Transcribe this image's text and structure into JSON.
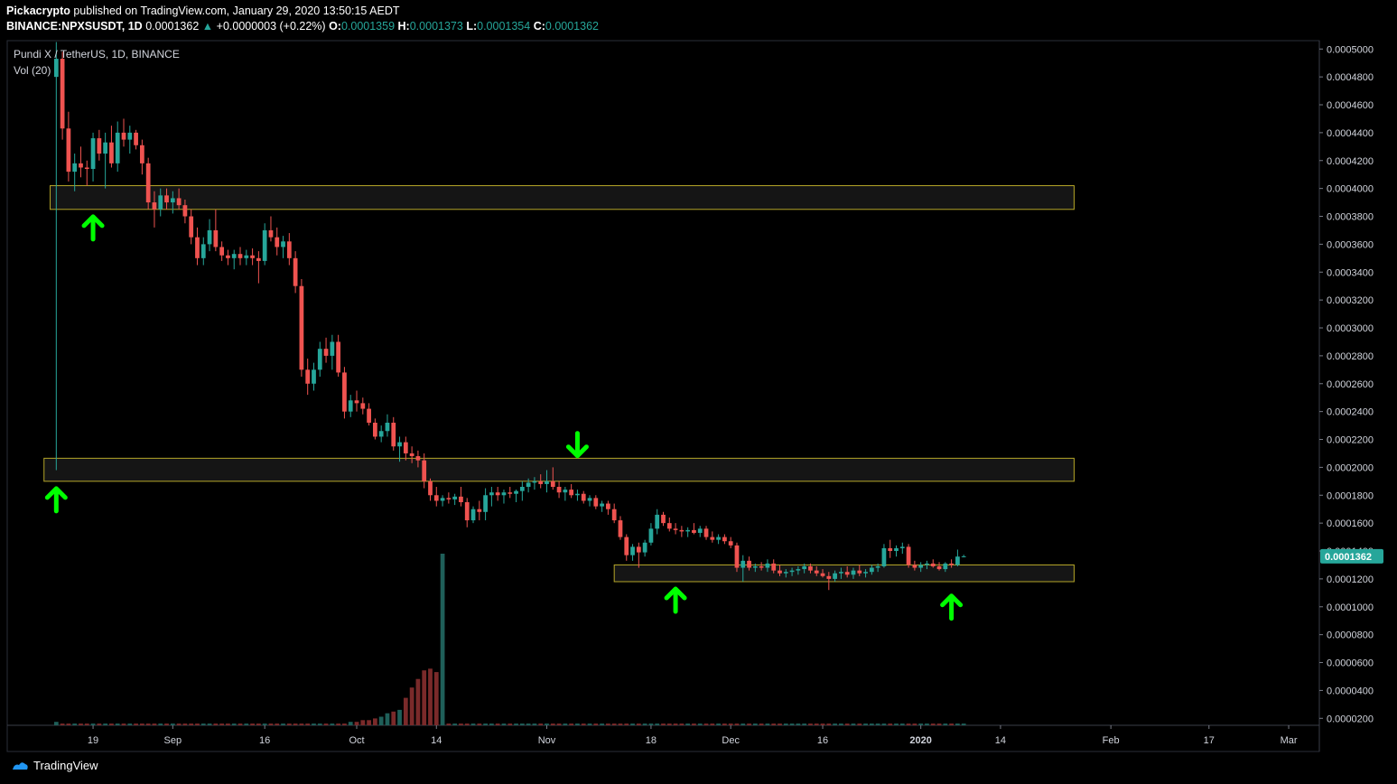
{
  "header": {
    "publisher": "Pickacrypto",
    "published_text": "published on TradingView.com, January 29, 2020 13:50:15 AEDT",
    "symbol_line": "BINANCE:NPXSUSDT, 1D",
    "last_price": "0.0001362",
    "change_arrow": "▲",
    "change": "+0.0000003 (+0.22%)",
    "o_label": "O:",
    "o_value": "0.0001359",
    "h_label": "H:",
    "h_value": "0.0001373",
    "l_label": "L:",
    "l_value": "0.0001354",
    "c_label": "C:",
    "c_value": "0.0001362"
  },
  "footer": {
    "brand": "TradingView",
    "logo_icon": "tradingview-logo-icon"
  },
  "colors": {
    "background": "#000000",
    "up": "#26a69a",
    "down": "#ef5350",
    "vol_up": "#1f5f59",
    "vol_down": "#7a2a2a",
    "zone_stroke": "#b5a628",
    "arrow": "#00ff00",
    "price_tag": "#26a69a"
  },
  "chart_data": {
    "type": "candlestick",
    "title": "Pundi X / TetherUS, 1D, BINANCE",
    "indicator_label": "Vol (20)",
    "current_price_label": "0.0001362",
    "y_axis": {
      "range": [
        1.5e-05,
        0.000506
      ],
      "ticks": [
        "0.0005000",
        "0.0004800",
        "0.0004600",
        "0.0004400",
        "0.0004200",
        "0.0004000",
        "0.0003800",
        "0.0003600",
        "0.0003400",
        "0.0003200",
        "0.0003000",
        "0.0002800",
        "0.0002600",
        "0.0002400",
        "0.0002200",
        "0.0002000",
        "0.0001800",
        "0.0001600",
        "0.0001400",
        "0.0001200",
        "0.0001000",
        "0.0000800",
        "0.0000600",
        "0.0000400",
        "0.0000200"
      ]
    },
    "x_axis": {
      "range": [
        "2019-08-05",
        "2020-03-06"
      ],
      "ticks": [
        {
          "date": "2019-08-19",
          "label": "19"
        },
        {
          "date": "2019-09-01",
          "label": "Sep"
        },
        {
          "date": "2019-09-16",
          "label": "16"
        },
        {
          "date": "2019-10-01",
          "label": "Oct"
        },
        {
          "date": "2019-10-14",
          "label": "14"
        },
        {
          "date": "2019-11-01",
          "label": "Nov"
        },
        {
          "date": "2019-11-18",
          "label": "18"
        },
        {
          "date": "2019-12-01",
          "label": "Dec"
        },
        {
          "date": "2019-12-16",
          "label": "16"
        },
        {
          "date": "2020-01-01",
          "label": "2020"
        },
        {
          "date": "2020-01-14",
          "label": "14"
        },
        {
          "date": "2020-02-01",
          "label": "Feb"
        },
        {
          "date": "2020-02-17",
          "label": "17"
        },
        {
          "date": "2020-03-01",
          "label": "Mar"
        }
      ]
    },
    "start_date": "2019-08-13",
    "candles": [
      [
        0.00048,
        0.000505,
        0.000198,
        0.000493
      ],
      [
        0.000493,
        0.000498,
        0.000435,
        0.000443
      ],
      [
        0.000443,
        0.000455,
        0.000405,
        0.000412
      ],
      [
        0.000412,
        0.000425,
        0.000398,
        0.000418
      ],
      [
        0.000418,
        0.00043,
        0.000408,
        0.000415
      ],
      [
        0.000415,
        0.00042,
        0.000402,
        0.000414
      ],
      [
        0.000414,
        0.00044,
        0.000405,
        0.000436
      ],
      [
        0.000436,
        0.000442,
        0.00042,
        0.000425
      ],
      [
        0.000425,
        0.00044,
        0.0004,
        0.000433
      ],
      [
        0.000433,
        0.000445,
        0.000415,
        0.000418
      ],
      [
        0.000418,
        0.000448,
        0.000412,
        0.00044
      ],
      [
        0.00044,
        0.00045,
        0.00043,
        0.000435
      ],
      [
        0.000435,
        0.000445,
        0.000425,
        0.00044
      ],
      [
        0.00044,
        0.000442,
        0.000428,
        0.000431
      ],
      [
        0.000431,
        0.000435,
        0.00041,
        0.000418
      ],
      [
        0.000418,
        0.000422,
        0.000385,
        0.00039
      ],
      [
        0.00039,
        0.000398,
        0.000372,
        0.000385
      ],
      [
        0.000385,
        0.0004,
        0.00038,
        0.000395
      ],
      [
        0.000395,
        0.0004,
        0.000385,
        0.00039
      ],
      [
        0.00039,
        0.000398,
        0.000382,
        0.000393
      ],
      [
        0.000393,
        0.0004,
        0.000385,
        0.000388
      ],
      [
        0.000388,
        0.000392,
        0.000375,
        0.00038
      ],
      [
        0.00038,
        0.000385,
        0.00036,
        0.000365
      ],
      [
        0.000365,
        0.000372,
        0.000345,
        0.00035
      ],
      [
        0.00035,
        0.000365,
        0.000345,
        0.00036
      ],
      [
        0.00036,
        0.000378,
        0.000355,
        0.00037
      ],
      [
        0.00037,
        0.000385,
        0.000355,
        0.000358
      ],
      [
        0.000358,
        0.000362,
        0.000348,
        0.000352
      ],
      [
        0.000352,
        0.000356,
        0.000345,
        0.00035
      ],
      [
        0.00035,
        0.000356,
        0.000342,
        0.000353
      ],
      [
        0.000353,
        0.000358,
        0.000345,
        0.00035
      ],
      [
        0.00035,
        0.000356,
        0.000345,
        0.000352
      ],
      [
        0.000352,
        0.000357,
        0.000345,
        0.00035
      ],
      [
        0.00035,
        0.000355,
        0.000332,
        0.000348
      ],
      [
        0.000348,
        0.000375,
        0.000345,
        0.00037
      ],
      [
        0.00037,
        0.00038,
        0.000362,
        0.000365
      ],
      [
        0.000365,
        0.000372,
        0.000352,
        0.000358
      ],
      [
        0.000358,
        0.000366,
        0.00035,
        0.000362
      ],
      [
        0.000362,
        0.000368,
        0.000345,
        0.00035
      ],
      [
        0.00035,
        0.000355,
        0.000325,
        0.00033
      ],
      [
        0.00033,
        0.000335,
        0.000265,
        0.00027
      ],
      [
        0.00027,
        0.000278,
        0.000252,
        0.00026
      ],
      [
        0.00026,
        0.000275,
        0.000255,
        0.00027
      ],
      [
        0.00027,
        0.00029,
        0.000265,
        0.000285
      ],
      [
        0.000285,
        0.000293,
        0.000275,
        0.00028
      ],
      [
        0.00028,
        0.000295,
        0.00027,
        0.00029
      ],
      [
        0.00029,
        0.000295,
        0.000265,
        0.000268
      ],
      [
        0.000268,
        0.000272,
        0.000235,
        0.00024
      ],
      [
        0.00024,
        0.000252,
        0.000236,
        0.000248
      ],
      [
        0.000248,
        0.000255,
        0.00024,
        0.000246
      ],
      [
        0.000246,
        0.00025,
        0.000238,
        0.000242
      ],
      [
        0.000242,
        0.000246,
        0.00023,
        0.000232
      ],
      [
        0.000232,
        0.000235,
        0.00022,
        0.000222
      ],
      [
        0.000222,
        0.00023,
        0.000218,
        0.000226
      ],
      [
        0.000226,
        0.000238,
        0.000222,
        0.000232
      ],
      [
        0.000232,
        0.000236,
        0.000212,
        0.000215
      ],
      [
        0.000215,
        0.000222,
        0.000204,
        0.000218
      ],
      [
        0.000218,
        0.000222,
        0.000205,
        0.00021
      ],
      [
        0.00021,
        0.000215,
        0.000203,
        0.000208
      ],
      [
        0.000208,
        0.000212,
        0.0002,
        0.000205
      ],
      [
        0.000205,
        0.00021,
        0.000185,
        0.00019
      ],
      [
        0.00019,
        0.000192,
        0.000176,
        0.00018
      ],
      [
        0.00018,
        0.000186,
        0.000172,
        0.000176
      ],
      [
        0.000176,
        0.00018,
        0.000172,
        0.000178
      ],
      [
        0.000178,
        0.000182,
        0.000174,
        0.000177
      ],
      [
        0.000177,
        0.000181,
        0.000173,
        0.000179
      ],
      [
        0.000179,
        0.000186,
        0.000172,
        0.000175
      ],
      [
        0.000175,
        0.000178,
        0.000157,
        0.000162
      ],
      [
        0.000162,
        0.000172,
        0.00016,
        0.00017
      ],
      [
        0.00017,
        0.000176,
        0.000162,
        0.000168
      ],
      [
        0.000168,
        0.000185,
        0.000162,
        0.00018
      ],
      [
        0.00018,
        0.000186,
        0.000172,
        0.000182
      ],
      [
        0.000182,
        0.000186,
        0.000176,
        0.00018
      ],
      [
        0.00018,
        0.000184,
        0.000174,
        0.000182
      ],
      [
        0.000182,
        0.000186,
        0.000178,
        0.000181
      ],
      [
        0.000181,
        0.000184,
        0.000175,
        0.000183
      ],
      [
        0.000183,
        0.00019,
        0.000176,
        0.000186
      ],
      [
        0.000186,
        0.000192,
        0.000182,
        0.000189
      ],
      [
        0.000189,
        0.000193,
        0.000184,
        0.00019
      ],
      [
        0.00019,
        0.000195,
        0.000185,
        0.000188
      ],
      [
        0.000188,
        0.000198,
        0.000182,
        0.00019
      ],
      [
        0.00019,
        0.0002,
        0.000184,
        0.000186
      ],
      [
        0.000186,
        0.00019,
        0.000178,
        0.000182
      ],
      [
        0.000182,
        0.000186,
        0.000176,
        0.000184
      ],
      [
        0.000184,
        0.000188,
        0.000178,
        0.00018
      ],
      [
        0.00018,
        0.000184,
        0.000176,
        0.000181
      ],
      [
        0.000181,
        0.000183,
        0.000174,
        0.000176
      ],
      [
        0.000176,
        0.00018,
        0.000172,
        0.000178
      ],
      [
        0.000178,
        0.00018,
        0.00017,
        0.000172
      ],
      [
        0.000172,
        0.000176,
        0.000168,
        0.000174
      ],
      [
        0.000174,
        0.000176,
        0.000166,
        0.00017
      ],
      [
        0.00017,
        0.000174,
        0.00016,
        0.000162
      ],
      [
        0.000162,
        0.000165,
        0.000148,
        0.00015
      ],
      [
        0.00015,
        0.000152,
        0.000133,
        0.000137
      ],
      [
        0.000137,
        0.000145,
        0.000133,
        0.000143
      ],
      [
        0.000143,
        0.000146,
        0.000128,
        0.000139
      ],
      [
        0.000139,
        0.000148,
        0.000136,
        0.000146
      ],
      [
        0.000146,
        0.00016,
        0.000144,
        0.000156
      ],
      [
        0.000156,
        0.00017,
        0.000152,
        0.000166
      ],
      [
        0.000166,
        0.000168,
        0.000158,
        0.00016
      ],
      [
        0.00016,
        0.000164,
        0.000154,
        0.000156
      ],
      [
        0.000156,
        0.00016,
        0.000152,
        0.000155
      ],
      [
        0.000155,
        0.000158,
        0.00015,
        0.000154
      ],
      [
        0.000154,
        0.000157,
        0.00015,
        0.000155
      ],
      [
        0.000155,
        0.00016,
        0.000152,
        0.000153
      ],
      [
        0.000153,
        0.000158,
        0.00015,
        0.000156
      ],
      [
        0.000156,
        0.000158,
        0.000148,
        0.00015
      ],
      [
        0.00015,
        0.000154,
        0.000146,
        0.000148
      ],
      [
        0.000148,
        0.000152,
        0.000145,
        0.00015
      ],
      [
        0.00015,
        0.000152,
        0.000145,
        0.000147
      ],
      [
        0.000147,
        0.00015,
        0.000142,
        0.000144
      ],
      [
        0.000144,
        0.000146,
        0.000125,
        0.000128
      ],
      [
        0.000128,
        0.000137,
        0.000118,
        0.000133
      ],
      [
        0.000133,
        0.000136,
        0.000126,
        0.000128
      ],
      [
        0.000128,
        0.000131,
        0.000125,
        0.000129
      ],
      [
        0.000129,
        0.000132,
        0.000126,
        0.000128
      ],
      [
        0.000128,
        0.000134,
        0.000125,
        0.000131
      ],
      [
        0.000131,
        0.000134,
        0.000124,
        0.000126
      ],
      [
        0.000126,
        0.00013,
        0.000122,
        0.000124
      ],
      [
        0.000124,
        0.000127,
        0.000121,
        0.000125
      ],
      [
        0.000125,
        0.000128,
        0.000122,
        0.000126
      ],
      [
        0.000126,
        0.000129,
        0.000123,
        0.000127
      ],
      [
        0.000127,
        0.000131,
        0.000124,
        0.000129
      ],
      [
        0.000129,
        0.000131,
        0.000124,
        0.000126
      ],
      [
        0.000126,
        0.000129,
        0.000122,
        0.000124
      ],
      [
        0.000124,
        0.000127,
        0.000121,
        0.000122
      ],
      [
        0.000122,
        0.000125,
        0.000112,
        0.00012
      ],
      [
        0.00012,
        0.000126,
        0.000118,
        0.000124
      ],
      [
        0.000124,
        0.000128,
        0.00012,
        0.000125
      ],
      [
        0.000125,
        0.000129,
        0.000121,
        0.000123
      ],
      [
        0.000123,
        0.000128,
        0.00012,
        0.000126
      ],
      [
        0.000126,
        0.00013,
        0.000122,
        0.000124
      ],
      [
        0.000124,
        0.000127,
        0.000121,
        0.000125
      ],
      [
        0.000125,
        0.00013,
        0.000123,
        0.000128
      ],
      [
        0.000128,
        0.000131,
        0.000125,
        0.000129
      ],
      [
        0.000129,
        0.000145,
        0.000128,
        0.000142
      ],
      [
        0.000142,
        0.000148,
        0.000135,
        0.00014
      ],
      [
        0.00014,
        0.000144,
        0.000136,
        0.000142
      ],
      [
        0.000142,
        0.000146,
        0.000138,
        0.000143
      ],
      [
        0.000143,
        0.000145,
        0.000128,
        0.00013
      ],
      [
        0.00013,
        0.000133,
        0.000126,
        0.000128
      ],
      [
        0.000128,
        0.000132,
        0.000125,
        0.00013
      ],
      [
        0.00013,
        0.000133,
        0.000127,
        0.000131
      ],
      [
        0.000131,
        0.000134,
        0.000128,
        0.000129
      ],
      [
        0.000129,
        0.000132,
        0.000126,
        0.000127
      ],
      [
        0.000127,
        0.000132,
        0.000125,
        0.000131
      ],
      [
        0.000131,
        0.000134,
        0.000128,
        0.00013
      ],
      [
        0.00013,
        0.000141,
        0.000129,
        0.000136
      ],
      [
        0.0001359,
        0.0001373,
        0.0001354,
        0.0001362
      ]
    ],
    "volume": [
      2,
      1,
      1,
      1,
      1,
      1,
      1,
      1,
      1,
      1,
      1,
      1,
      1,
      1,
      1,
      1,
      1,
      1,
      1,
      1,
      1,
      1,
      1,
      1,
      1,
      1,
      1,
      1,
      1,
      1,
      1,
      1,
      1,
      1,
      1,
      1,
      1,
      1,
      1,
      1,
      1,
      1,
      1,
      1,
      1,
      1,
      1,
      1,
      2,
      2,
      3,
      3,
      4,
      5,
      7,
      8,
      9,
      16,
      22,
      27,
      32,
      33,
      31,
      100,
      1,
      1,
      1,
      1,
      1,
      1,
      1,
      1,
      1,
      1,
      1,
      1,
      1,
      1,
      1,
      1,
      1,
      1,
      1,
      1,
      1,
      1,
      1,
      1,
      1,
      1,
      1,
      1,
      1,
      1,
      1,
      1,
      1,
      1,
      1,
      1,
      1,
      1,
      1,
      1,
      1,
      1,
      1,
      1,
      1,
      1,
      1,
      1,
      1,
      1,
      1,
      1,
      1,
      1,
      1,
      1,
      1,
      1,
      1,
      1,
      1,
      1,
      1,
      1,
      1,
      1,
      1,
      1,
      1,
      1,
      1,
      1,
      1,
      1,
      1,
      1,
      1,
      1,
      1,
      1,
      1,
      1,
      1,
      1,
      1,
      1,
      1,
      1,
      1,
      1,
      1,
      1,
      1,
      1,
      1,
      1,
      1,
      1,
      1
    ],
    "zones": [
      {
        "from_date": "2019-08-12",
        "to_date": "2020-01-26",
        "low": 0.000385,
        "high": 0.000402
      },
      {
        "from_date": "2019-08-11",
        "to_date": "2020-01-26",
        "low": 0.00019,
        "high": 0.0002065
      },
      {
        "from_date": "2019-11-12",
        "to_date": "2020-01-26",
        "low": 0.000118,
        "high": 0.00013
      }
    ],
    "arrows": [
      {
        "date": "2019-08-19",
        "price": 0.000372,
        "dir": "up"
      },
      {
        "date": "2019-08-13",
        "price": 0.000177,
        "dir": "up"
      },
      {
        "date": "2019-11-06",
        "price": 0.000216,
        "dir": "down"
      },
      {
        "date": "2019-11-22",
        "price": 0.000105,
        "dir": "up"
      },
      {
        "date": "2020-01-06",
        "price": 0.0001,
        "dir": "up"
      }
    ]
  }
}
